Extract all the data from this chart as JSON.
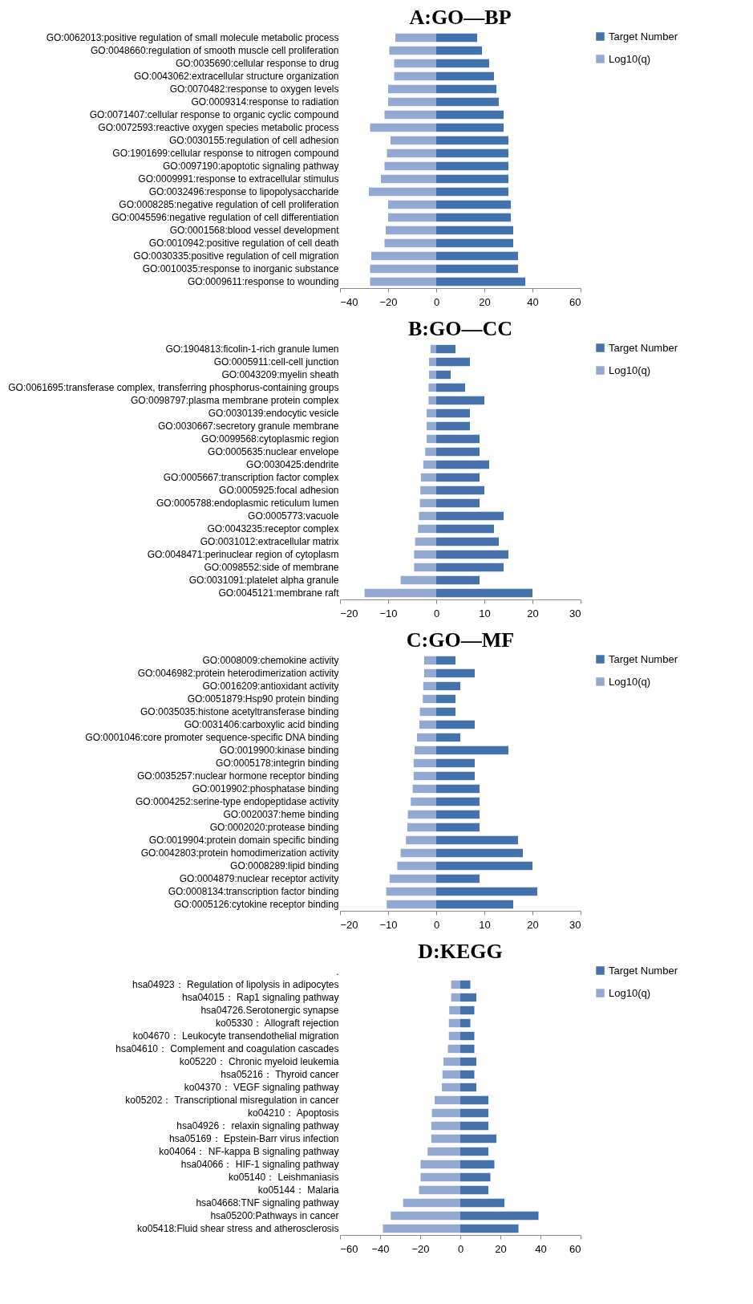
{
  "chart_data": [
    {
      "type": "bar",
      "orientation": "horizontal",
      "stacked": true,
      "title": "A:GO—BP",
      "legend": "top right",
      "categories": [
        "GO:0062013:positive regulation of small molecule metabolic process",
        "GO:0048660:regulation of smooth muscle cell proliferation",
        "GO:0035690:cellular response to drug",
        "GO:0043062:extracellular structure organization",
        "GO:0070482:response to oxygen levels",
        "GO:0009314:response to radiation",
        "GO:0071407:cellular response to organic cyclic compound",
        "GO:0072593:reactive oxygen species metabolic process",
        "GO:0030155:regulation of cell adhesion",
        "GO:1901699:cellular response to nitrogen compound",
        "GO:0097190:apoptotic signaling pathway",
        "GO:0009991:response to extracellular stimulus",
        "GO:0032496:response to lipopolysaccharide",
        "GO:0008285:negative regulation of cell proliferation",
        "GO:0045596:negative regulation of cell differentiation",
        "GO:0001568:blood vessel development",
        "GO:0010942:positive regulation of cell death",
        "GO:0030335:positive regulation of cell migration",
        "GO:0010035:response to inorganic substance",
        "GO:0009611:response to wounding"
      ],
      "series": [
        {
          "name": "Target Number",
          "color": "#4672aa",
          "values": [
            17,
            19,
            22,
            24,
            25,
            26,
            28,
            28,
            30,
            30,
            30,
            30,
            30,
            31,
            31,
            32,
            32,
            34,
            34,
            37
          ]
        },
        {
          "name": "Log10(q)",
          "color": "#93a9d1",
          "values": [
            -17,
            -19.5,
            -17.5,
            -17.5,
            -20,
            -20,
            -21.5,
            -27.5,
            -19,
            -20.5,
            -21.5,
            -23,
            -28,
            -20,
            -20,
            -21,
            -21.5,
            -27,
            -27.5,
            -27.5
          ]
        }
      ],
      "xlim": [
        -40,
        60
      ],
      "xticks": [
        -40,
        -20,
        0,
        20,
        40,
        60
      ]
    },
    {
      "type": "bar",
      "orientation": "horizontal",
      "stacked": true,
      "title": "B:GO—CC",
      "legend": "top right",
      "categories": [
        "GO:1904813:ficolin-1-rich granule lumen",
        "GO:0005911:cell-cell junction",
        "GO:0043209:myelin sheath",
        "GO:0061695:transferase complex, transferring phosphorus-containing groups",
        "GO:0098797:plasma membrane protein complex",
        "GO:0030139:endocytic vesicle",
        "GO:0030667:secretory granule membrane",
        "GO:0099568:cytoplasmic region",
        "GO:0005635:nuclear envelope",
        "GO:0030425:dendrite",
        "GO:0005667:transcription factor complex",
        "GO:0005925:focal adhesion",
        "GO:0005788:endoplasmic reticulum lumen",
        "GO:0005773:vacuole",
        "GO:0043235:receptor complex",
        "GO:0031012:extracellular matrix",
        "GO:0048471:perinuclear region of cytoplasm",
        "GO:0098552:side of membrane",
        "GO:0031091:platelet alpha granule",
        "GO:0045121:membrane raft"
      ],
      "series": [
        {
          "name": "Target Number",
          "color": "#4672aa",
          "values": [
            4,
            7,
            3,
            6,
            10,
            7,
            7,
            9,
            9,
            11,
            9,
            10,
            9,
            14,
            12,
            13,
            15,
            14,
            9,
            20
          ]
        },
        {
          "name": "Log10(q)",
          "color": "#93a9d1",
          "values": [
            -1.2,
            -1.5,
            -1.5,
            -1.6,
            -1.6,
            -2,
            -2,
            -2,
            -2.3,
            -2.7,
            -3.2,
            -3.3,
            -3.4,
            -3.6,
            -3.8,
            -4.4,
            -4.6,
            -4.6,
            -7.4,
            -14.9
          ]
        }
      ],
      "xlim": [
        -20,
        30
      ],
      "xticks": [
        -20,
        -10,
        0,
        10,
        20,
        30
      ]
    },
    {
      "type": "bar",
      "orientation": "horizontal",
      "stacked": true,
      "title": "C:GO—MF",
      "legend": "top right",
      "categories": [
        "GO:0008009:chemokine activity",
        "GO:0046982:protein heterodimerization activity",
        "GO:0016209:antioxidant activity",
        "GO:0051879:Hsp90 protein binding",
        "GO:0035035:histone acetyltransferase binding",
        "GO:0031406:carboxylic acid binding",
        "GO:0001046:core promoter sequence-specific DNA binding",
        "GO:0019900:kinase binding",
        "GO:0005178:integrin binding",
        "GO:0035257:nuclear hormone receptor binding",
        "GO:0019902:phosphatase binding",
        "GO:0004252:serine-type endopeptidase activity",
        "GO:0020037:heme binding",
        "GO:0002020:protease binding",
        "GO:0019904:protein domain specific binding",
        "GO:0042803:protein homodimerization activity",
        "GO:0008289:lipid binding",
        "GO:0004879:nuclear receptor activity",
        "GO:0008134:transcription factor binding",
        "GO:0005126:cytokine receptor binding"
      ],
      "series": [
        {
          "name": "Target Number",
          "color": "#4672aa",
          "values": [
            4,
            8,
            5,
            4,
            4,
            8,
            5,
            15,
            8,
            8,
            9,
            9,
            9,
            9,
            17,
            18,
            20,
            9,
            21,
            16
          ]
        },
        {
          "name": "Log10(q)",
          "color": "#93a9d1",
          "values": [
            -2.5,
            -2.5,
            -2.7,
            -2.8,
            -3.4,
            -3.5,
            -4,
            -4.5,
            -4.7,
            -4.7,
            -4.9,
            -5.3,
            -5.9,
            -6,
            -6.3,
            -7.4,
            -8.1,
            -9.7,
            -10.4,
            -10.3
          ]
        }
      ],
      "xlim": [
        -20,
        30
      ],
      "xticks": [
        -20,
        -10,
        0,
        10,
        20,
        30
      ]
    },
    {
      "type": "bar",
      "orientation": "horizontal",
      "stacked": true,
      "title": "D:KEGG",
      "legend": "top right",
      "categories": [
        ".",
        "hsa04923： Regulation of lipolysis in adipocytes",
        "hsa04015： Rap1 signaling pathway",
        "hsa04726.Serotonergic synapse",
        "ko05330： Allograft rejection",
        "ko04670： Leukocyte transendothelial migration",
        "hsa04610： Complement and coagulation cascades",
        "ko05220： Chronic myeloid leukemia",
        "hsa05216： Thyroid cancer",
        "ko04370： VEGF signaling pathway",
        "ko05202： Transcriptional misregulation in cancer",
        "ko04210： Apoptosis",
        "hsa04926： relaxin signaling pathway",
        "hsa05169： Epstein-Barr virus infection",
        "ko04064： NF-kappa B signaling pathway",
        "hsa04066： HIF-1 signaling pathway",
        "ko05140： Leishmaniasis",
        "ko05144： Malaria",
        "hsa04668:TNF signaling pathway",
        "hsa05200:Pathways in cancer",
        "ko05418:Fluid shear stress and atherosclerosis"
      ],
      "series": [
        {
          "name": "Target Number",
          "color": "#4672aa",
          "values": [
            null,
            5,
            8,
            7,
            5,
            7,
            7,
            8,
            7,
            8,
            14,
            14,
            14,
            18,
            14,
            17,
            15,
            14,
            22,
            39,
            29
          ]
        },
        {
          "name": "Log10(q)",
          "color": "#93a9d1",
          "values": [
            null,
            -4.6,
            -4.6,
            -5.5,
            -5.7,
            -5.7,
            -6.2,
            -8.4,
            -8.9,
            -9.2,
            -12.8,
            -14.2,
            -14.5,
            -14.5,
            -16.3,
            -19.8,
            -19.8,
            -20.6,
            -28.5,
            -34.7,
            -38.6
          ]
        }
      ],
      "xlim": [
        -60,
        60
      ],
      "xticks": [
        -60,
        -40,
        -20,
        0,
        20,
        40,
        60
      ]
    }
  ]
}
